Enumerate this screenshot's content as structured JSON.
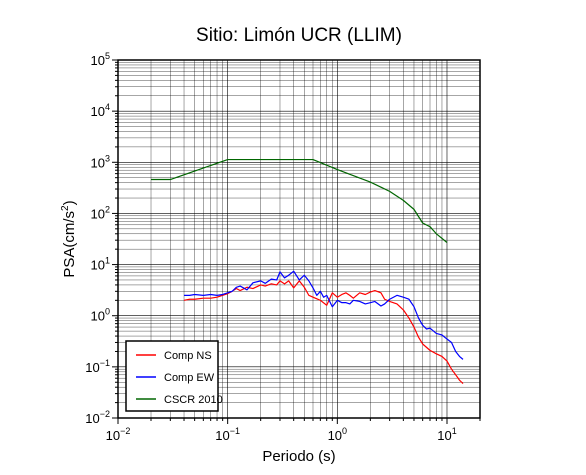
{
  "chart_data": {
    "type": "line",
    "title": "Sitio: Limón UCR (LLIM)",
    "xlabel": "Periodo (s)",
    "ylabel": {
      "text": "PSA(cm/s",
      "sup": "2",
      "close": ")"
    },
    "x_scale": "log",
    "y_scale": "log",
    "xlim": [
      0.01,
      20
    ],
    "ylim": [
      0.01,
      100000
    ],
    "grid": true,
    "legend_position": "bottom-left",
    "x_ticks": [
      {
        "value": 0.01,
        "base": "10",
        "exp": "−2"
      },
      {
        "value": 0.1,
        "base": "10",
        "exp": "−1"
      },
      {
        "value": 1,
        "base": "10",
        "exp": "0"
      },
      {
        "value": 10,
        "base": "10",
        "exp": "1"
      }
    ],
    "y_ticks": [
      {
        "value": 0.01,
        "base": "10",
        "exp": "−2"
      },
      {
        "value": 0.1,
        "base": "10",
        "exp": "−1"
      },
      {
        "value": 1,
        "base": "10",
        "exp": "0"
      },
      {
        "value": 10,
        "base": "10",
        "exp": "1"
      },
      {
        "value": 100,
        "base": "10",
        "exp": "2"
      },
      {
        "value": 1000,
        "base": "10",
        "exp": "3"
      },
      {
        "value": 10000,
        "base": "10",
        "exp": "4"
      },
      {
        "value": 100000,
        "base": "10",
        "exp": "5"
      }
    ],
    "series": [
      {
        "name": "Comp NS",
        "color": "#ff0000",
        "points": [
          [
            0.04,
            2.0
          ],
          [
            0.045,
            2.1
          ],
          [
            0.05,
            2.1
          ],
          [
            0.06,
            2.2
          ],
          [
            0.07,
            2.2
          ],
          [
            0.08,
            2.3
          ],
          [
            0.09,
            2.5
          ],
          [
            0.1,
            2.7
          ],
          [
            0.11,
            3.0
          ],
          [
            0.12,
            3.4
          ],
          [
            0.13,
            3.1
          ],
          [
            0.15,
            3.6
          ],
          [
            0.17,
            3.4
          ],
          [
            0.2,
            4.0
          ],
          [
            0.22,
            3.8
          ],
          [
            0.25,
            4.2
          ],
          [
            0.28,
            4.0
          ],
          [
            0.3,
            4.8
          ],
          [
            0.33,
            4.2
          ],
          [
            0.36,
            4.8
          ],
          [
            0.4,
            3.5
          ],
          [
            0.45,
            4.8
          ],
          [
            0.5,
            3.6
          ],
          [
            0.55,
            2.5
          ],
          [
            0.6,
            2.3
          ],
          [
            0.7,
            2.0
          ],
          [
            0.8,
            1.6
          ],
          [
            0.9,
            2.8
          ],
          [
            1.0,
            2.3
          ],
          [
            1.1,
            2.6
          ],
          [
            1.2,
            2.8
          ],
          [
            1.3,
            2.5
          ],
          [
            1.4,
            2.2
          ],
          [
            1.6,
            2.8
          ],
          [
            1.8,
            2.6
          ],
          [
            2.0,
            2.9
          ],
          [
            2.2,
            3.1
          ],
          [
            2.5,
            2.8
          ],
          [
            2.7,
            2.1
          ],
          [
            3.0,
            1.9
          ],
          [
            3.5,
            1.7
          ],
          [
            4.0,
            1.3
          ],
          [
            4.5,
            0.9
          ],
          [
            5.0,
            0.6
          ],
          [
            5.5,
            0.38
          ],
          [
            6.0,
            0.28
          ],
          [
            7.0,
            0.21
          ],
          [
            8.0,
            0.18
          ],
          [
            9.0,
            0.16
          ],
          [
            10,
            0.13
          ],
          [
            11,
            0.09
          ],
          [
            12,
            0.07
          ],
          [
            13,
            0.055
          ],
          [
            14,
            0.047
          ]
        ]
      },
      {
        "name": "Comp EW",
        "color": "#0000ff",
        "points": [
          [
            0.04,
            2.5
          ],
          [
            0.045,
            2.5
          ],
          [
            0.05,
            2.6
          ],
          [
            0.06,
            2.5
          ],
          [
            0.07,
            2.6
          ],
          [
            0.08,
            2.5
          ],
          [
            0.09,
            2.6
          ],
          [
            0.1,
            2.8
          ],
          [
            0.11,
            3.0
          ],
          [
            0.12,
            3.6
          ],
          [
            0.13,
            3.8
          ],
          [
            0.15,
            3.2
          ],
          [
            0.17,
            4.4
          ],
          [
            0.2,
            4.8
          ],
          [
            0.22,
            4.3
          ],
          [
            0.25,
            5.2
          ],
          [
            0.28,
            5.0
          ],
          [
            0.3,
            7.2
          ],
          [
            0.33,
            5.5
          ],
          [
            0.36,
            6.2
          ],
          [
            0.4,
            7.4
          ],
          [
            0.45,
            5.0
          ],
          [
            0.5,
            6.2
          ],
          [
            0.55,
            4.8
          ],
          [
            0.6,
            3.5
          ],
          [
            0.65,
            2.5
          ],
          [
            0.7,
            3.0
          ],
          [
            0.75,
            2.3
          ],
          [
            0.8,
            2.5
          ],
          [
            0.9,
            1.5
          ],
          [
            1.0,
            2.0
          ],
          [
            1.1,
            1.8
          ],
          [
            1.2,
            1.8
          ],
          [
            1.3,
            1.7
          ],
          [
            1.4,
            2.0
          ],
          [
            1.6,
            1.9
          ],
          [
            1.8,
            1.7
          ],
          [
            2.0,
            1.8
          ],
          [
            2.2,
            1.9
          ],
          [
            2.5,
            1.55
          ],
          [
            2.7,
            1.7
          ],
          [
            3.0,
            2.1
          ],
          [
            3.5,
            2.5
          ],
          [
            4.0,
            2.3
          ],
          [
            4.5,
            2.1
          ],
          [
            5.0,
            1.5
          ],
          [
            5.5,
            0.9
          ],
          [
            6.0,
            0.65
          ],
          [
            6.5,
            0.55
          ],
          [
            7.0,
            0.57
          ],
          [
            8.0,
            0.45
          ],
          [
            9.0,
            0.42
          ],
          [
            10,
            0.35
          ],
          [
            11,
            0.3
          ],
          [
            12,
            0.2
          ],
          [
            13,
            0.16
          ],
          [
            14,
            0.14
          ]
        ]
      },
      {
        "name": "CSCR 2010",
        "color": "#006600",
        "points": [
          [
            0.02,
            460
          ],
          [
            0.03,
            460
          ],
          [
            0.1,
            1130
          ],
          [
            0.6,
            1130
          ],
          [
            1.0,
            720
          ],
          [
            2.0,
            410
          ],
          [
            3.0,
            270
          ],
          [
            4.0,
            180
          ],
          [
            5.0,
            120
          ],
          [
            6.0,
            65
          ],
          [
            7.0,
            55
          ],
          [
            8.0,
            40
          ],
          [
            10,
            27
          ]
        ]
      }
    ]
  }
}
